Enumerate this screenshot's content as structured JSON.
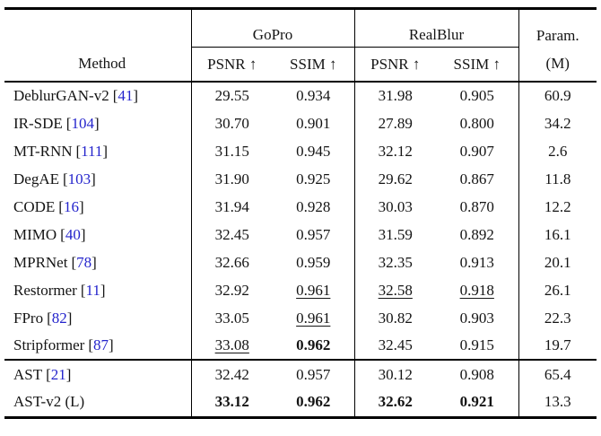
{
  "header": {
    "method": "Method",
    "group_gopro": "GoPro",
    "group_realblur": "RealBlur",
    "param_line1": "Param.",
    "param_line2": "(M)",
    "psnr": "PSNR ↑",
    "ssim": "SSIM ↑"
  },
  "accent_colors": {
    "citation_link": "#2424cc",
    "rule": "#000000"
  },
  "rows": [
    {
      "method": "DeblurGAN-v2",
      "cite_open": "[",
      "cite_num": "41",
      "cite_close": "]",
      "gopro_psnr": "29.55",
      "gopro_ssim": "0.934",
      "realblur_psnr": "31.98",
      "realblur_ssim": "0.905",
      "params": "60.9"
    },
    {
      "method": "IR-SDE",
      "cite_open": "[",
      "cite_num": "104",
      "cite_close": "]",
      "gopro_psnr": "30.70",
      "gopro_ssim": "0.901",
      "realblur_psnr": "27.89",
      "realblur_ssim": "0.800",
      "params": "34.2"
    },
    {
      "method": "MT-RNN",
      "cite_open": "[",
      "cite_num": "111",
      "cite_close": "]",
      "gopro_psnr": "31.15",
      "gopro_ssim": "0.945",
      "realblur_psnr": "32.12",
      "realblur_ssim": "0.907",
      "params": "2.6"
    },
    {
      "method": "DegAE",
      "cite_open": "[",
      "cite_num": "103",
      "cite_close": "]",
      "gopro_psnr": "31.90",
      "gopro_ssim": "0.925",
      "realblur_psnr": "29.62",
      "realblur_ssim": "0.867",
      "params": "11.8"
    },
    {
      "method": "CODE",
      "cite_open": "[",
      "cite_num": "16",
      "cite_close": "]",
      "gopro_psnr": "31.94",
      "gopro_ssim": "0.928",
      "realblur_psnr": "30.03",
      "realblur_ssim": "0.870",
      "params": "12.2"
    },
    {
      "method": "MIMO",
      "cite_open": "[",
      "cite_num": "40",
      "cite_close": "]",
      "gopro_psnr": "32.45",
      "gopro_ssim": "0.957",
      "realblur_psnr": "31.59",
      "realblur_ssim": "0.892",
      "params": "16.1"
    },
    {
      "method": "MPRNet",
      "cite_open": "[",
      "cite_num": "78",
      "cite_close": "]",
      "gopro_psnr": "32.66",
      "gopro_ssim": "0.959",
      "realblur_psnr": "32.35",
      "realblur_ssim": "0.913",
      "params": "20.1"
    },
    {
      "method": "Restormer",
      "cite_open": "[",
      "cite_num": "11",
      "cite_close": "]",
      "gopro_psnr": "32.92",
      "gopro_ssim": "0.961",
      "realblur_psnr": "32.58",
      "realblur_ssim": "0.918",
      "params": "26.1"
    },
    {
      "method": "FPro",
      "cite_open": "[",
      "cite_num": "82",
      "cite_close": "]",
      "gopro_psnr": "33.05",
      "gopro_ssim": "0.961",
      "realblur_psnr": "30.82",
      "realblur_ssim": "0.903",
      "params": "22.3"
    },
    {
      "method": "Stripformer",
      "cite_open": "[",
      "cite_num": "87",
      "cite_close": "]",
      "gopro_psnr": "33.08",
      "gopro_ssim": "0.962",
      "realblur_psnr": "32.45",
      "realblur_ssim": "0.915",
      "params": "19.7"
    },
    {
      "method": "AST",
      "cite_open": "[",
      "cite_num": "21",
      "cite_close": "]",
      "gopro_psnr": "32.42",
      "gopro_ssim": "0.957",
      "realblur_psnr": "30.12",
      "realblur_ssim": "0.908",
      "params": "65.4"
    },
    {
      "method": "AST-v2 (L)",
      "cite_open": "",
      "cite_num": "",
      "cite_close": "",
      "gopro_psnr": "33.12",
      "gopro_ssim": "0.962",
      "realblur_psnr": "32.62",
      "realblur_ssim": "0.921",
      "params": "13.3"
    }
  ]
}
